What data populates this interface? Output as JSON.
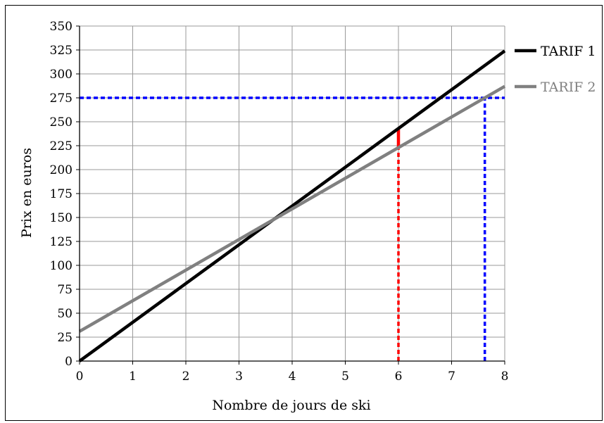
{
  "chart_data": {
    "type": "line",
    "title": "",
    "xlabel": "Nombre de jours de ski",
    "ylabel": "Prix en euros",
    "xlim": [
      0,
      8
    ],
    "ylim": [
      0,
      350
    ],
    "x_ticks": [
      0,
      1,
      2,
      3,
      4,
      5,
      6,
      7,
      8
    ],
    "y_ticks": [
      0,
      25,
      50,
      75,
      100,
      125,
      150,
      175,
      200,
      225,
      250,
      275,
      300,
      325,
      350
    ],
    "grid": true,
    "legend_position": "right",
    "series": [
      {
        "name": "TARIF 1",
        "color": "#000000",
        "x": [
          0,
          8
        ],
        "y": [
          0,
          324
        ]
      },
      {
        "name": "TARIF 2",
        "color": "#808080",
        "x": [
          0,
          8
        ],
        "y": [
          31,
          287
        ]
      }
    ],
    "annotations": [
      {
        "kind": "dotted-horizontal",
        "color": "#0000ff",
        "y": 275,
        "x_from": 0,
        "x_to": 8
      },
      {
        "kind": "dotted-vertical",
        "color": "#0000ff",
        "x": 7.625,
        "y_from": 0,
        "y_to": 275
      },
      {
        "kind": "dotted-vertical",
        "color": "#ff0000",
        "x": 6,
        "y_from": 0,
        "y_to": 223
      },
      {
        "kind": "solid-segment",
        "color": "#ff0000",
        "x": 6,
        "y_from": 223,
        "y_to": 243
      }
    ]
  }
}
